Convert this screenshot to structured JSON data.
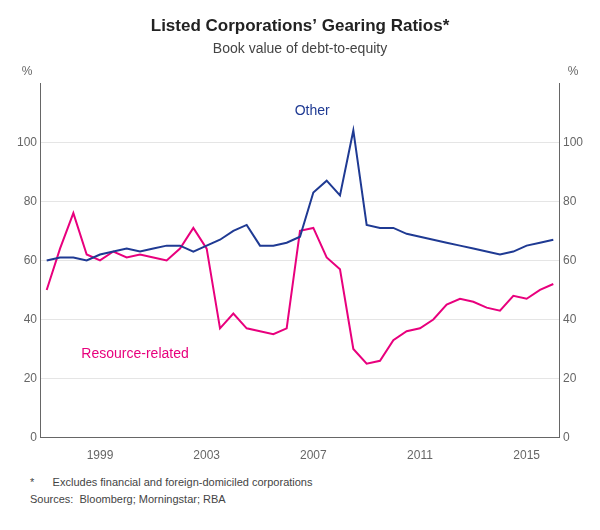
{
  "chart_data": {
    "type": "line",
    "title": "Listed Corporations’ Gearing Ratios*",
    "subtitle": "Book value of debt-to-equity",
    "ylabel": "%",
    "y2label": "%",
    "notes": [
      "*      Excludes financial and foreign-domiciled corporations",
      "Sources:  Bloomberg; Morningstar; RBA"
    ],
    "x": [
      1997.0,
      1997.5,
      1998.0,
      1998.5,
      1999.0,
      1999.5,
      2000.0,
      2000.5,
      2001.0,
      2001.5,
      2002.0,
      2002.5,
      2003.0,
      2003.5,
      2004.0,
      2004.5,
      2005.0,
      2005.5,
      2006.0,
      2006.5,
      2007.0,
      2007.5,
      2008.0,
      2008.5,
      2009.0,
      2009.5,
      2010.0,
      2010.5,
      2011.0,
      2011.5,
      2012.0,
      2012.5,
      2013.0,
      2013.5,
      2014.0,
      2014.5,
      2015.0,
      2015.5,
      2016.0
    ],
    "series": [
      {
        "name": "Other",
        "color": "#1f3a93",
        "values": [
          60,
          61,
          61,
          60,
          62,
          63,
          64,
          63,
          64,
          65,
          65,
          63,
          65,
          67,
          70,
          72,
          65,
          65,
          66,
          68,
          83,
          87,
          82,
          104,
          72,
          71,
          71,
          69,
          68,
          67,
          66,
          65,
          64,
          63,
          62,
          63,
          65,
          66,
          67
        ]
      },
      {
        "name": "Resource-related",
        "color": "#e8007d",
        "values": [
          50,
          64,
          76,
          62,
          60,
          63,
          61,
          62,
          61,
          60,
          64,
          71,
          64,
          37,
          42,
          37,
          36,
          35,
          37,
          70,
          71,
          61,
          57,
          30,
          25,
          26,
          33,
          36,
          37,
          40,
          45,
          47,
          46,
          44,
          43,
          48,
          47,
          50,
          52
        ]
      }
    ],
    "annotations": [
      {
        "text": "Other",
        "x": 2006.3,
        "y": 108
      },
      {
        "text": "Resource-related",
        "x": 1998.3,
        "y": 26
      }
    ],
    "xlim": [
      1996.75,
      2016.25
    ],
    "xticks": [
      1999,
      2003,
      2007,
      2011,
      2015
    ],
    "ylim": [
      0,
      120
    ],
    "yticks": [
      0,
      20,
      40,
      60,
      80,
      100
    ],
    "y2lim": [
      0,
      120
    ],
    "y2ticks": [
      0,
      20,
      40,
      60,
      80,
      100
    ],
    "grid": true
  }
}
